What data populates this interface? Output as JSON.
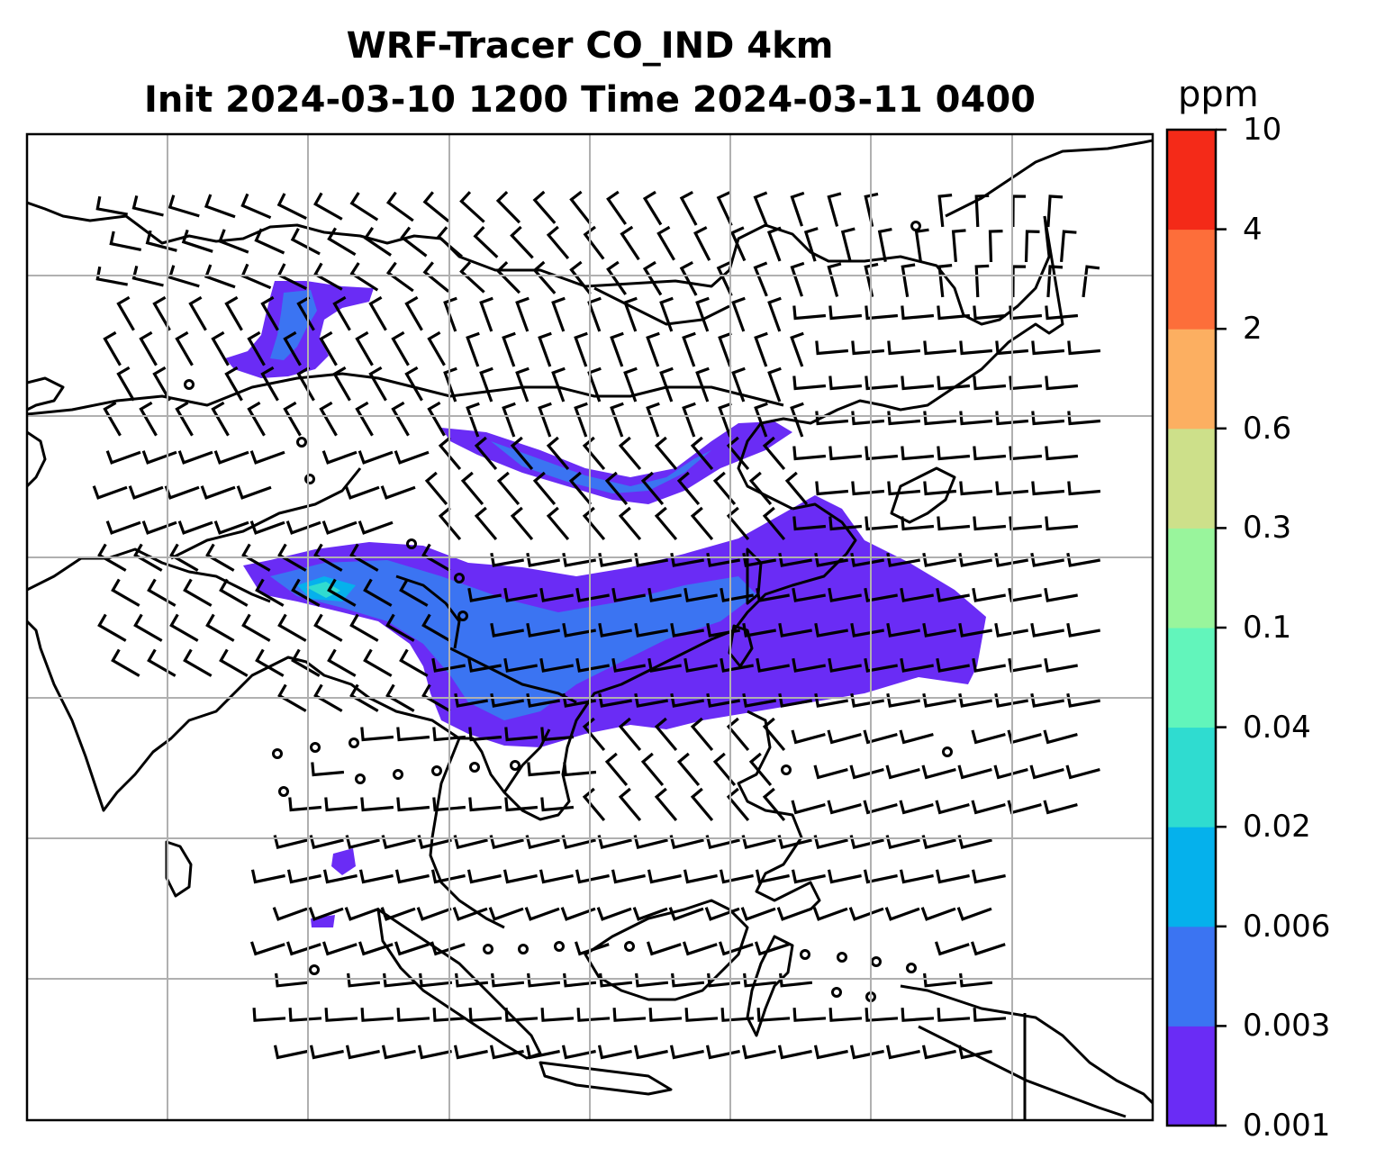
{
  "title": {
    "line1": "WRF-Tracer CO_IND 4km",
    "line2": "Init 2024-03-10 1200 Time 2024-03-11 0400"
  },
  "colorbar": {
    "unit": "ppm",
    "levels": [
      "0.001",
      "0.003",
      "0.006",
      "0.02",
      "0.04",
      "0.1",
      "0.3",
      "0.6",
      "2",
      "4",
      "10"
    ],
    "colors": [
      "#6a2cf5",
      "#3b74f2",
      "#05b1ec",
      "#2fdcd0",
      "#62f5bb",
      "#99f59c",
      "#cde08a",
      "#fcaf61",
      "#fd6e3a",
      "#f42a18"
    ]
  },
  "map": {
    "grid": true,
    "background": "#ffffff",
    "coastline_color": "#000000",
    "grid_color": "#b0b0b0"
  }
}
